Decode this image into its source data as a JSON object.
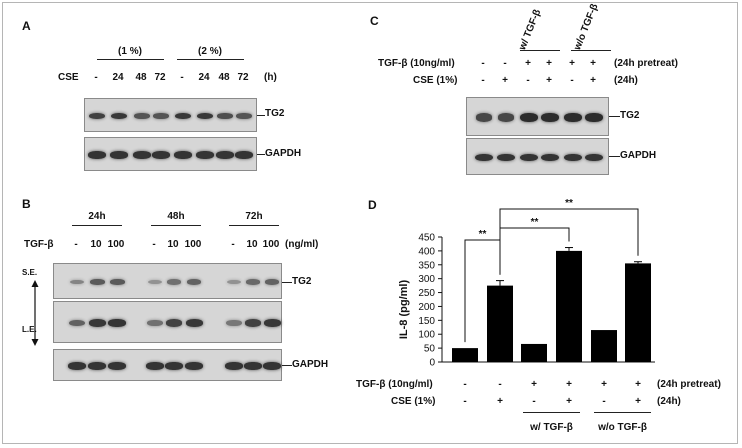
{
  "panel_a": {
    "letter": "A",
    "group_1pct": "(1 %)",
    "group_2pct": "(2 %)",
    "row_label": "CSE",
    "lanes": [
      "-",
      "24",
      "48",
      "72",
      "-",
      "24",
      "48",
      "72"
    ],
    "unit": "(h)",
    "band_tg2": "TG2",
    "band_gapdh": "GAPDH"
  },
  "panel_b": {
    "letter": "B",
    "times": [
      "24h",
      "48h",
      "72h"
    ],
    "row_label": "TGF-β",
    "doses": [
      "-",
      "10",
      "100"
    ],
    "unit": "(ng/ml)",
    "se_label": "S.E.",
    "le_label": "L.E.",
    "band_tg2": "TG2",
    "band_gapdh": "GAPDH"
  },
  "panel_c": {
    "letter": "C",
    "group_with": "w/ TGF-β",
    "group_without": "w/o TGF-β",
    "row1_label": "TGF-β (10ng/ml)",
    "row1_values": [
      "-",
      "-",
      "+",
      "+",
      "+",
      "+"
    ],
    "row1_note": "(24h pretreat)",
    "row2_label": "CSE (1%)",
    "row2_values": [
      "-",
      "+",
      "-",
      "+",
      "-",
      "+"
    ],
    "row2_note": "(24h)",
    "band_tg2": "TG2",
    "band_gapdh": "GAPDH"
  },
  "panel_d": {
    "letter": "D",
    "ylabel": "IL-8 (pg/ml)",
    "row1_label": "TGF-β (10ng/ml)",
    "row1_values": [
      "-",
      "-",
      "+",
      "+",
      "+",
      "+"
    ],
    "row1_note": "(24h pretreat)",
    "row2_label": "CSE (1%)",
    "row2_values": [
      "-",
      "+",
      "-",
      "+",
      "-",
      "+"
    ],
    "row2_note": "(24h)",
    "group_with": "w/ TGF-β",
    "group_without": "w/o TGF-β",
    "significance": "**"
  },
  "chart_data": {
    "type": "bar",
    "ylabel": "IL-8 (pg/ml)",
    "ylim": [
      0,
      450
    ],
    "yticks": [
      "0",
      "50",
      "100",
      "150",
      "200",
      "250",
      "300",
      "350",
      "400",
      "450"
    ],
    "categories": [
      "1",
      "2",
      "3",
      "4",
      "5",
      "6"
    ],
    "values": [
      50,
      275,
      65,
      400,
      115,
      355
    ],
    "errors": [
      0,
      18,
      0,
      12,
      0,
      6
    ],
    "significance": [
      {
        "from": 1,
        "to": 2,
        "label": "**"
      },
      {
        "from": 2,
        "to": 4,
        "label": "**"
      },
      {
        "from": 2,
        "to": 6,
        "label": "**"
      }
    ],
    "grid": false,
    "legend": "none"
  }
}
